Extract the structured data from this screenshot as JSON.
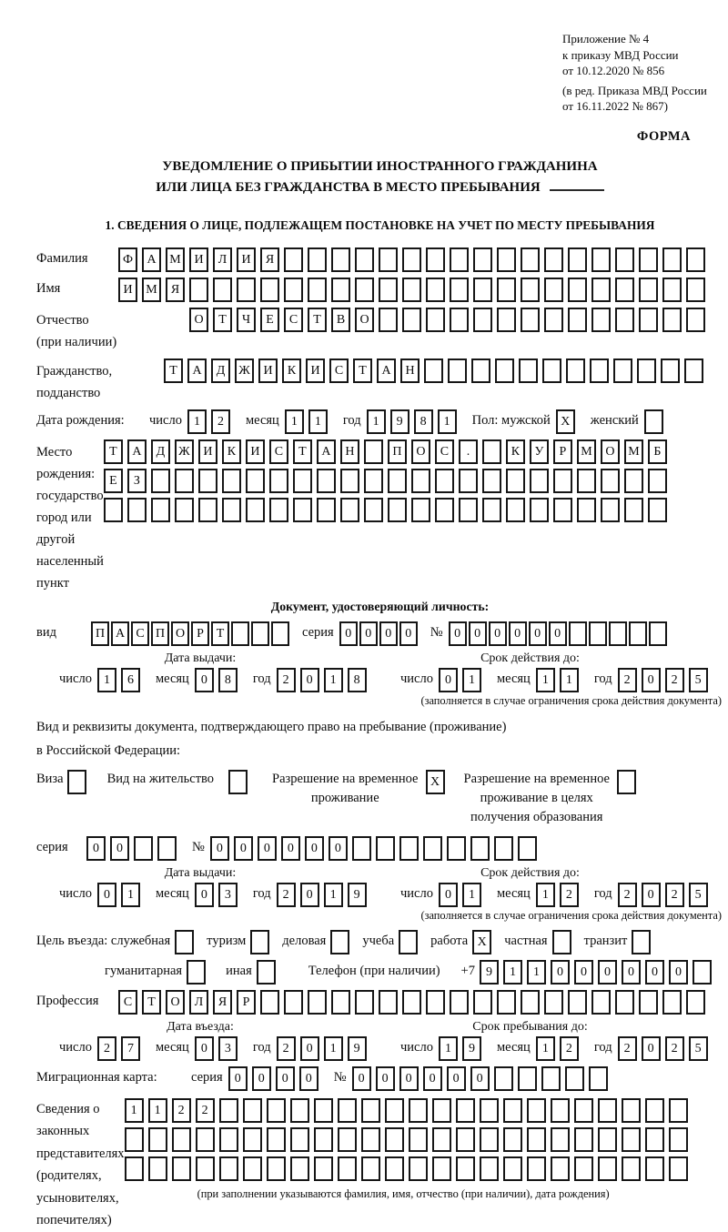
{
  "dmy": {
    "day": "число",
    "month": "месяц",
    "year": "год"
  },
  "header": {
    "appendix": [
      "Приложение № 4",
      "к приказу МВД России",
      "от 10.12.2020 № 856"
    ],
    "amendment": [
      "(в ред. Приказа МВД России",
      "от 16.11.2022 № 867)"
    ],
    "form_label": "ФОРМА"
  },
  "title": {
    "line1": "УВЕДОМЛЕНИЕ О ПРИБЫТИИ ИНОСТРАННОГО ГРАЖДАНИНА",
    "line2": "ИЛИ ЛИЦА БЕЗ ГРАЖДАНСТВА В МЕСТО ПРЕБЫВАНИЯ"
  },
  "section1": {
    "heading": "1. СВЕДЕНИЯ О ЛИЦЕ, ПОДЛЕЖАЩЕМ ПОСТАНОВКЕ НА УЧЕТ ПО МЕСТУ ПРЕБЫВАНИЯ"
  },
  "person": {
    "surname": {
      "label": "Фамилия",
      "cells": {
        "val": "ФАМИЛИЯ",
        "len": 25
      }
    },
    "name": {
      "label": "Имя",
      "cells": {
        "val": "ИМЯ",
        "len": 25
      }
    },
    "patronymic": {
      "label_line1": "Отчество",
      "label_line2": "(при наличии)",
      "cells": {
        "val": "ОТЧЕСТВО",
        "len": 22
      }
    },
    "citizenship": {
      "label_line1": "Гражданство,",
      "label_line2": "подданство",
      "cells": {
        "val": "ТАДЖИКИСТАН",
        "len": 23
      }
    },
    "birth_date": {
      "label": "Дата рождения:",
      "day": {
        "val": "12",
        "len": 2
      },
      "month": {
        "val": "11",
        "len": 2
      },
      "year": {
        "val": "1981",
        "len": 4
      }
    },
    "gender": {
      "label": "Пол:",
      "male_label": "мужской",
      "female_label": "женский",
      "male_box": {
        "val": "X",
        "len": 1
      },
      "female_box": {
        "val": "",
        "len": 1
      }
    },
    "birth_place": {
      "label_lines": [
        "Место рождения:",
        "государство",
        "город или другой",
        "населенный пункт"
      ],
      "row1": {
        "val": "ТАДЖИКИСТАН ПОС. КУРМОМБ",
        "len": 24
      },
      "row2": {
        "val": "ЕЗ",
        "len": 24
      },
      "row3": {
        "val": "",
        "len": 24
      }
    }
  },
  "identity_doc": {
    "heading": "Документ, удостоверяющий личность:",
    "type_label": "вид",
    "type": {
      "val": "ПАСПОРТ",
      "len": 10
    },
    "series_label": "серия",
    "series": {
      "val": "0000",
      "len": 4
    },
    "number_label": "№",
    "number": {
      "val": "000000",
      "len": 11
    },
    "issue_heading": "Дата выдачи:",
    "issue": {
      "day": {
        "val": "16",
        "len": 2
      },
      "month": {
        "val": "08",
        "len": 2
      },
      "year": {
        "val": "2018",
        "len": 4
      }
    },
    "expiry_heading": "Срок действия до:",
    "expiry": {
      "day": {
        "val": "01",
        "len": 2
      },
      "month": {
        "val": "11",
        "len": 2
      },
      "year": {
        "val": "2025",
        "len": 4
      }
    },
    "note": "(заполняется в случае ограничения срока действия документа)"
  },
  "residence_doc": {
    "intro_line1": "Вид и реквизиты документа, подтверждающего право на пребывание (проживание)",
    "intro_line2": "в Российской Федерации:",
    "visa_label": "Виза",
    "visa_box": {
      "val": "",
      "len": 1
    },
    "residence_permit_label": "Вид на жительство",
    "residence_permit_box": {
      "val": "",
      "len": 1
    },
    "rvp_label_line1": "Разрешение на временное",
    "rvp_label_line2": "проживание",
    "rvp_box": {
      "val": "X",
      "len": 1
    },
    "rvp_edu_label_line1": "Разрешение на временное",
    "rvp_edu_label_line2": "проживание в целях",
    "rvp_edu_label_line3": "получения образования",
    "rvp_edu_box": {
      "val": "",
      "len": 1
    },
    "series_label": "серия",
    "series": {
      "val": "00",
      "len": 4
    },
    "number_label": "№",
    "number": {
      "val": "000000",
      "len": 14
    },
    "issue_heading": "Дата выдачи:",
    "issue": {
      "day": {
        "val": "01",
        "len": 2
      },
      "month": {
        "val": "03",
        "len": 2
      },
      "year": {
        "val": "2019",
        "len": 4
      }
    },
    "expiry_heading": "Срок действия до:",
    "expiry": {
      "day": {
        "val": "01",
        "len": 2
      },
      "month": {
        "val": "12",
        "len": 2
      },
      "year": {
        "val": "2025",
        "len": 4
      }
    },
    "note": "(заполняется в случае ограничения срока действия документа)"
  },
  "visit": {
    "purpose_label": "Цель въезда:",
    "purpose_official": "служебная",
    "purpose_official_box": {
      "val": "",
      "len": 1
    },
    "purpose_tourism": "туризм",
    "purpose_tourism_box": {
      "val": "",
      "len": 1
    },
    "purpose_business": "деловая",
    "purpose_business_box": {
      "val": "",
      "len": 1
    },
    "purpose_study": "учеба",
    "purpose_study_box": {
      "val": "",
      "len": 1
    },
    "purpose_work": "работа",
    "purpose_work_box": {
      "val": "X",
      "len": 1
    },
    "purpose_private": "частная",
    "purpose_private_box": {
      "val": "",
      "len": 1
    },
    "purpose_transit": "транзит",
    "purpose_transit_box": {
      "val": "",
      "len": 1
    },
    "purpose_humanitarian": "гуманитарная",
    "purpose_humanitarian_box": {
      "val": "",
      "len": 1
    },
    "purpose_other": "иная",
    "purpose_other_box": {
      "val": "",
      "len": 1
    },
    "phone_label": "Телефон (при наличии)",
    "phone_prefix": "+7",
    "phone": {
      "val": "911000000",
      "len": 10
    },
    "profession_label": "Профессия",
    "profession": {
      "val": "СТОЛЯР",
      "len": 25
    },
    "entry_heading": "Дата въезда:",
    "entry": {
      "day": {
        "val": "27",
        "len": 2
      },
      "month": {
        "val": "03",
        "len": 2
      },
      "year": {
        "val": "2019",
        "len": 4
      }
    },
    "stay_heading": "Срок пребывания до:",
    "stay": {
      "day": {
        "val": "19",
        "len": 2
      },
      "month": {
        "val": "12",
        "len": 2
      },
      "year": {
        "val": "2025",
        "len": 4
      }
    }
  },
  "migration_card": {
    "label": "Миграционная карта:",
    "series_label": "серия",
    "series": {
      "val": "0000",
      "len": 4
    },
    "number_label": "№",
    "number": {
      "val": "000000",
      "len": 11
    }
  },
  "legal_reps": {
    "label_lines": [
      "Сведения о",
      "законных",
      "представителях",
      "(родителях,",
      "усыновителях,",
      "попечителях)"
    ],
    "row1": {
      "val": "1122",
      "len": 24
    },
    "row2": {
      "val": "",
      "len": 24
    },
    "row3": {
      "val": "",
      "len": 24
    },
    "note": "(при заполнении указываются фамилия, имя, отчество (при наличии), дата рождения)"
  }
}
